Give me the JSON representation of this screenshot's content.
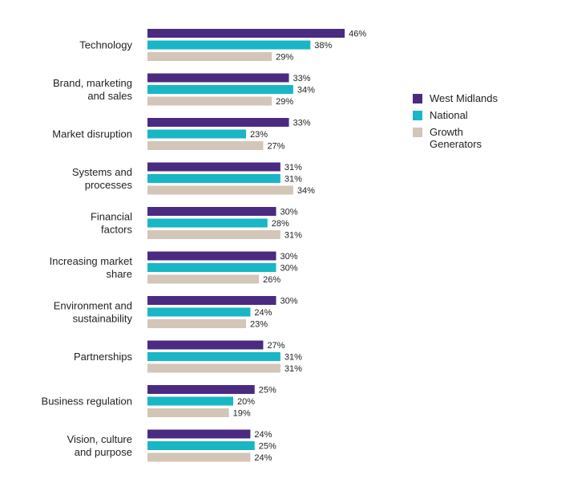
{
  "chart_data": {
    "type": "bar",
    "orientation": "horizontal",
    "categories": [
      "Technology",
      "Brand, marketing and sales",
      "Market disruption",
      "Systems and processes",
      "Financial factors",
      "Increasing market share",
      "Environment and sustainability",
      "Partnerships",
      "Business regulation",
      "Vision, culture and purpose"
    ],
    "category_lines": [
      [
        "Technology"
      ],
      [
        "Brand, marketing",
        "and sales"
      ],
      [
        "Market disruption"
      ],
      [
        "Systems and",
        "processes"
      ],
      [
        "Financial",
        "factors"
      ],
      [
        "Increasing market",
        "share"
      ],
      [
        "Environment and",
        "sustainability"
      ],
      [
        "Partnerships"
      ],
      [
        "Business regulation"
      ],
      [
        "Vision, culture",
        "and purpose"
      ]
    ],
    "series": [
      {
        "name": "West Midlands",
        "color": "#4b2a82",
        "values": [
          46,
          33,
          33,
          31,
          30,
          30,
          30,
          27,
          25,
          24
        ],
        "labels": [
          "46%",
          "33%",
          "33%",
          "31%",
          "30%",
          "30%",
          "30%",
          "27%",
          "25%",
          "24%"
        ]
      },
      {
        "name": "National",
        "color": "#19b6c5",
        "values": [
          38,
          34,
          23,
          31,
          28,
          30,
          24,
          31,
          20,
          25
        ],
        "labels": [
          "38%",
          "34%",
          "23%",
          "31%",
          "28%",
          "30%",
          "24%",
          "31%",
          "20%",
          "25%"
        ]
      },
      {
        "name": "Growth Generators",
        "color": "#d3c5b8",
        "values": [
          29,
          29,
          27,
          34,
          31,
          26,
          23,
          31,
          19,
          24
        ],
        "labels": [
          "29%",
          "29%",
          "27%",
          "34%",
          "31%",
          "26%",
          "23%",
          "31%",
          "19%",
          "24%"
        ]
      }
    ],
    "legend_position": "right",
    "grid": false
  }
}
